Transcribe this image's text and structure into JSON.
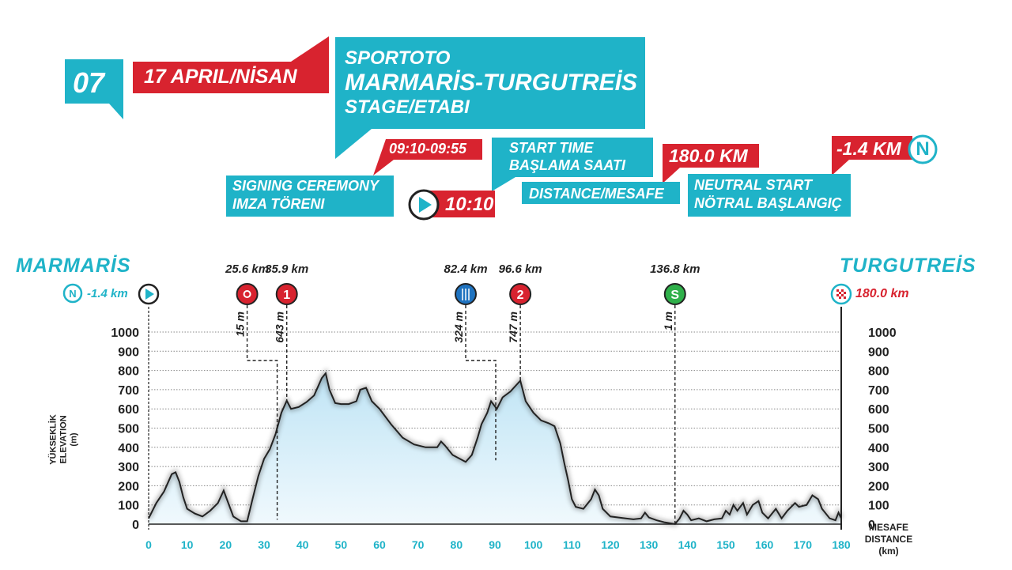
{
  "header": {
    "stage_number": "07",
    "date": "17 APRIL/NİSAN",
    "sponsor": "SPORTOTO",
    "route": "MARMARİS-TURGUTREİS",
    "stage_word": "STAGE/ETABI",
    "signing_time": "09:10-09:55",
    "signing_label_1": "SIGNING CEREMONY",
    "signing_label_2": "IMZA TÖRENI",
    "start_time": "10:10",
    "start_label_1": "START TIME",
    "start_label_2": "BAŞLAMA SAATI",
    "distance": "180.0 KM",
    "distance_label": "DISTANCE/MESAFE",
    "neutral": "-1.4 KM",
    "neutral_label_1": "NEUTRAL START",
    "neutral_label_2": "NÖTRAL BAŞLANGIÇ",
    "neutral_icon_letter": "N"
  },
  "profile": {
    "start_city": "MARMARİS",
    "finish_city": "TURGUTREİS",
    "neutral_km": "-1.4 km",
    "finish_km": "180.0 km",
    "y_axis_label_1": "YÜKSEKLİK",
    "y_axis_label_2": "ELEVATION",
    "y_axis_label_3": "(m)",
    "x_axis_label_1": "MESAFE",
    "x_axis_label_2": "DISTANCE",
    "x_axis_label_3": "(km)"
  },
  "colors": {
    "teal": "#1fb3c8",
    "red": "#d8232f",
    "blue": "#1f73c0",
    "green": "#2fb04a",
    "fill_top": "#bfe4f5",
    "fill_bottom": "#f0f9fd"
  },
  "chart_data": {
    "type": "area",
    "xlabel": "MESAFE DISTANCE (km)",
    "ylabel": "YÜKSEKLİK ELEVATION (m)",
    "xlim": [
      0,
      180
    ],
    "ylim": [
      0,
      1000
    ],
    "x_ticks": [
      0,
      10,
      20,
      30,
      40,
      50,
      60,
      70,
      80,
      90,
      100,
      110,
      120,
      130,
      140,
      150,
      160,
      170,
      180
    ],
    "y_ticks": [
      0,
      100,
      200,
      300,
      400,
      500,
      600,
      700,
      800,
      900,
      1000
    ],
    "grid": "horizontal dotted",
    "points": [
      [
        0,
        30
      ],
      [
        2,
        110
      ],
      [
        4,
        170
      ],
      [
        6,
        260
      ],
      [
        7,
        270
      ],
      [
        8,
        220
      ],
      [
        9,
        140
      ],
      [
        10,
        80
      ],
      [
        12,
        55
      ],
      [
        14,
        40
      ],
      [
        16,
        70
      ],
      [
        18,
        110
      ],
      [
        19.5,
        175
      ],
      [
        20.5,
        120
      ],
      [
        22,
        40
      ],
      [
        24,
        15
      ],
      [
        25.6,
        15
      ],
      [
        27,
        130
      ],
      [
        28.5,
        250
      ],
      [
        30,
        340
      ],
      [
        31.5,
        390
      ],
      [
        33,
        470
      ],
      [
        34.5,
        580
      ],
      [
        35.9,
        643
      ],
      [
        37,
        600
      ],
      [
        39,
        610
      ],
      [
        41,
        635
      ],
      [
        43,
        670
      ],
      [
        45,
        760
      ],
      [
        46,
        785
      ],
      [
        47,
        700
      ],
      [
        48.5,
        630
      ],
      [
        50,
        625
      ],
      [
        52,
        625
      ],
      [
        54,
        640
      ],
      [
        55,
        700
      ],
      [
        56.5,
        710
      ],
      [
        58,
        640
      ],
      [
        60,
        600
      ],
      [
        63,
        520
      ],
      [
        66,
        450
      ],
      [
        69,
        415
      ],
      [
        72,
        400
      ],
      [
        75,
        400
      ],
      [
        76,
        430
      ],
      [
        77,
        410
      ],
      [
        79,
        360
      ],
      [
        82.4,
        324
      ],
      [
        84,
        360
      ],
      [
        85.5,
        450
      ],
      [
        86.5,
        520
      ],
      [
        88,
        580
      ],
      [
        89,
        640
      ],
      [
        90.5,
        600
      ],
      [
        92,
        660
      ],
      [
        94,
        690
      ],
      [
        96.6,
        747
      ],
      [
        98,
        640
      ],
      [
        100,
        580
      ],
      [
        102,
        540
      ],
      [
        104,
        525
      ],
      [
        105.5,
        510
      ],
      [
        107,
        420
      ],
      [
        108,
        320
      ],
      [
        109,
        230
      ],
      [
        110,
        130
      ],
      [
        111,
        90
      ],
      [
        113,
        80
      ],
      [
        115,
        130
      ],
      [
        116,
        180
      ],
      [
        117,
        150
      ],
      [
        118,
        80
      ],
      [
        120,
        40
      ],
      [
        122,
        35
      ],
      [
        124,
        30
      ],
      [
        126,
        25
      ],
      [
        128,
        30
      ],
      [
        129,
        60
      ],
      [
        130,
        35
      ],
      [
        132,
        20
      ],
      [
        134,
        10
      ],
      [
        136.8,
        1
      ],
      [
        138,
        30
      ],
      [
        139,
        70
      ],
      [
        140,
        50
      ],
      [
        141,
        20
      ],
      [
        143,
        30
      ],
      [
        145,
        15
      ],
      [
        147,
        25
      ],
      [
        149,
        30
      ],
      [
        150,
        70
      ],
      [
        151,
        50
      ],
      [
        152,
        100
      ],
      [
        153,
        70
      ],
      [
        154.5,
        110
      ],
      [
        155.5,
        50
      ],
      [
        157,
        100
      ],
      [
        158.5,
        120
      ],
      [
        159.5,
        60
      ],
      [
        161,
        30
      ],
      [
        163,
        80
      ],
      [
        164.5,
        30
      ],
      [
        166,
        70
      ],
      [
        168,
        110
      ],
      [
        169,
        90
      ],
      [
        171,
        100
      ],
      [
        172.5,
        150
      ],
      [
        174,
        130
      ],
      [
        175,
        80
      ],
      [
        177,
        30
      ],
      [
        178.5,
        20
      ],
      [
        179.3,
        60
      ],
      [
        180,
        30
      ]
    ],
    "markers": [
      {
        "km": 25.6,
        "km_label": "25.6 km",
        "elevation_label": "15 m",
        "type": "intermediate-sprint",
        "color": "#d8232f",
        "text": ""
      },
      {
        "km": 35.9,
        "km_label": "35.9 km",
        "elevation_label": "643 m",
        "type": "climb-1",
        "color": "#d8232f",
        "text": "1"
      },
      {
        "km": 82.4,
        "km_label": "82.4 km",
        "elevation_label": "324 m",
        "type": "feed-zone",
        "color": "#1f73c0",
        "text": ""
      },
      {
        "km": 96.6,
        "km_label": "96.6 km",
        "elevation_label": "747 m",
        "type": "climb-2",
        "color": "#d8232f",
        "text": "2"
      },
      {
        "km": 136.8,
        "km_label": "136.8 km",
        "elevation_label": "1 m",
        "type": "sprint",
        "color": "#2fb04a",
        "text": "S"
      }
    ]
  }
}
